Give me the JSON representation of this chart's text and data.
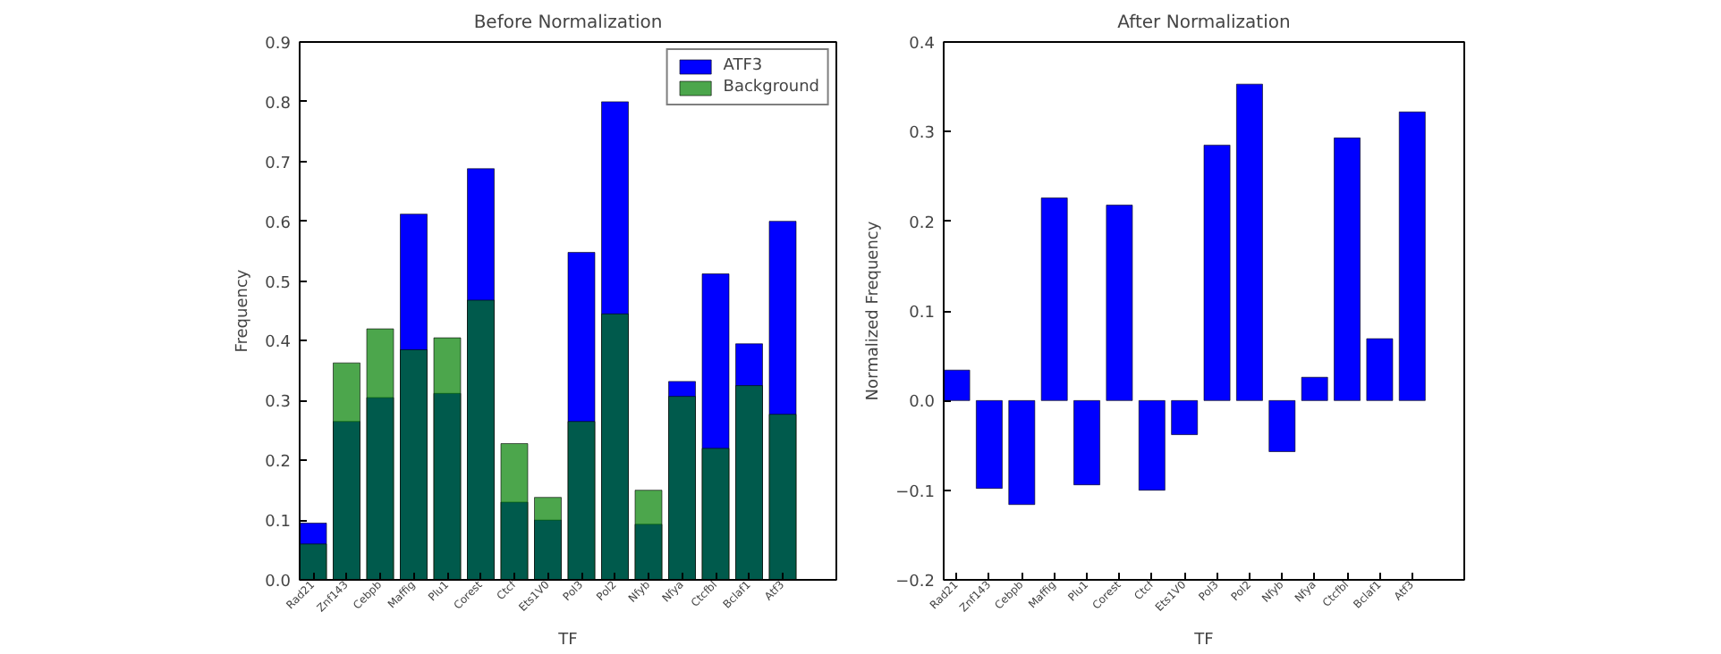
{
  "chart_data": [
    {
      "type": "bar",
      "title": "Before Normalization",
      "xlabel": "TF",
      "ylabel": "Frequency",
      "categories": [
        "Rad21",
        "Znf143",
        "Cebpb",
        "Maffig",
        "Plu1",
        "Corest",
        "Ctcf",
        "Ets1V0",
        "Pol3",
        "Pol2",
        "Nfyb",
        "Nfya",
        "Ctcfbl",
        "Bclaf1",
        "Atf3"
      ],
      "series": [
        {
          "name": "ATF3",
          "color": "#0000ff",
          "values": [
            0.095,
            0.265,
            0.305,
            0.612,
            0.312,
            0.688,
            0.13,
            0.1,
            0.548,
            0.8,
            0.093,
            0.332,
            0.512,
            0.395,
            0.6
          ]
        },
        {
          "name": "Background",
          "color": "#008000",
          "values": [
            0.06,
            0.363,
            0.42,
            0.385,
            0.405,
            0.468,
            0.228,
            0.138,
            0.265,
            0.445,
            0.15,
            0.307,
            0.22,
            0.325,
            0.277
          ]
        }
      ],
      "ylim": [
        0,
        0.9
      ],
      "yticks": [
        {
          "value": 0,
          "label": "0.0"
        },
        0.1,
        0.2,
        0.3,
        0.4,
        0.5,
        0.6,
        0.7,
        0.8,
        0.9
      ],
      "grid": false,
      "legend": "top right"
    },
    {
      "type": "bar",
      "title": "After Normalization",
      "xlabel": "TF",
      "ylabel": "Normalized Frequency",
      "categories": [
        "Rad21",
        "Znf143",
        "Cebpb",
        "Maffig",
        "Plu1",
        "Corest",
        "Ctcf",
        "Ets1V0",
        "Pol3",
        "Pol2",
        "Nfyb",
        "Nfya",
        "Ctcfbl",
        "Bclaf1",
        "Atf3"
      ],
      "series": [
        {
          "color": "#0000ff",
          "values": [
            0.034,
            -0.098,
            -0.116,
            0.226,
            -0.094,
            0.218,
            -0.1,
            -0.038,
            0.285,
            0.353,
            -0.057,
            0.026,
            0.293,
            0.069,
            0.322
          ]
        }
      ],
      "ylim": [
        -0.2,
        0.4
      ],
      "yticks": [
        {
          "value": -0.2,
          "label": "−0.2"
        },
        {
          "value": -0.1,
          "label": "−0.1"
        },
        {
          "value": 0,
          "label": "0.0"
        },
        0.1,
        0.2,
        0.3,
        0.4
      ],
      "grid": false,
      "legend": false
    }
  ]
}
